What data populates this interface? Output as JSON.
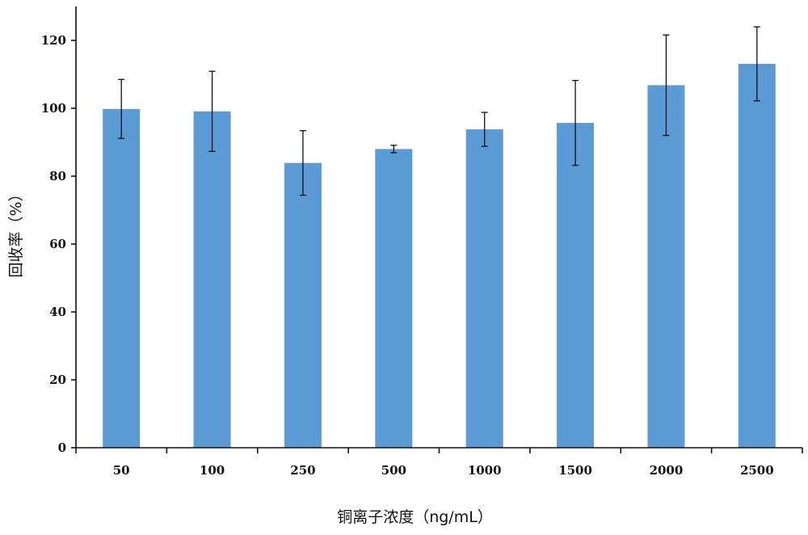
{
  "chart_data": {
    "type": "bar",
    "title": "",
    "xlabel": "铜离子浓度（ng/mL）",
    "ylabel": "回收率（%）",
    "categories": [
      "50",
      "100",
      "250",
      "500",
      "1000",
      "1500",
      "2000",
      "2500"
    ],
    "series": [
      {
        "values": [
          99.8,
          99.1,
          83.9,
          88.0,
          93.8,
          95.7,
          106.8,
          113.1
        ],
        "errors": [
          8.7,
          11.8,
          9.5,
          1.1,
          5.0,
          12.5,
          14.8,
          10.9
        ],
        "color": "#5b9bd5"
      }
    ],
    "ylim": [
      0,
      130
    ],
    "yticks": [
      0,
      20,
      40,
      60,
      80,
      100,
      120
    ],
    "grid": false,
    "legend": "none"
  }
}
